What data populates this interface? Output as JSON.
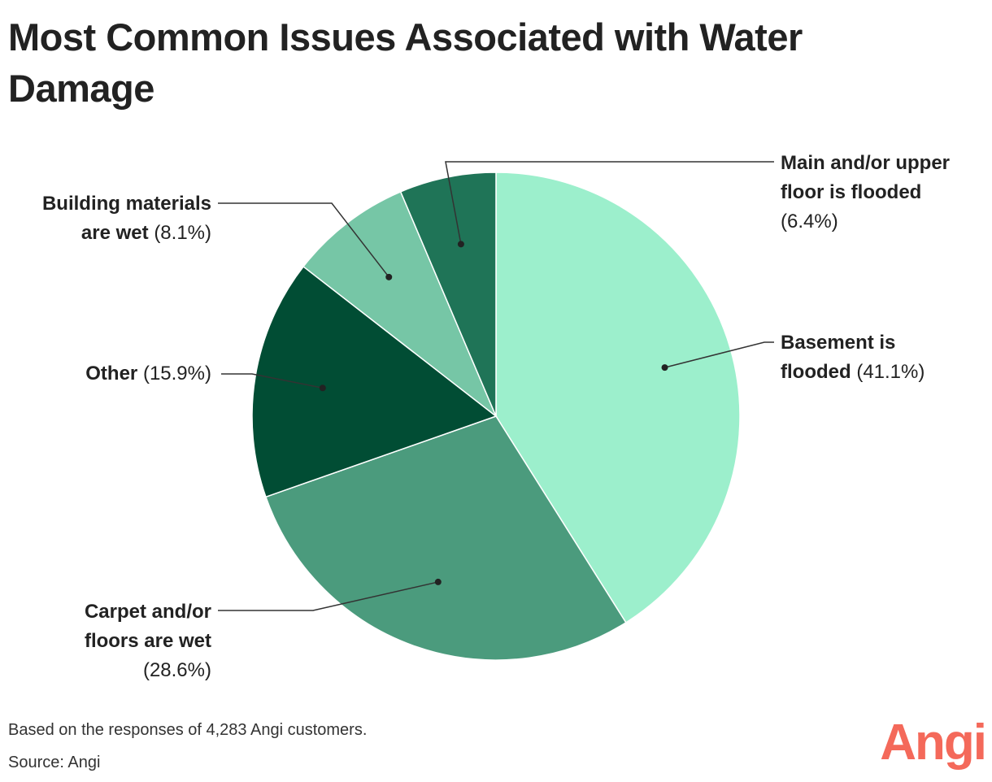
{
  "chart_data": {
    "type": "pie",
    "title": "Most Common Issues Associated with Water Damage",
    "slices": [
      {
        "label": "Basement is flooded",
        "label_line1": "Basement is",
        "label_line2": "flooded",
        "pct_text": "(41.1%)",
        "value": 41.1,
        "color": "#9cefcc"
      },
      {
        "label": "Carpet and/or floors are wet",
        "label_line1": "Carpet and/or",
        "label_line2": "floors are wet",
        "pct_text": "(28.6%)",
        "value": 28.6,
        "color": "#4b9b7d"
      },
      {
        "label": "Other",
        "label_line1": "Other",
        "pct_text": "(15.9%)",
        "value": 15.9,
        "color": "#014d34"
      },
      {
        "label": "Building materials are wet",
        "label_line1": "Building materials",
        "label_line2": "are wet",
        "pct_text": "(8.1%)",
        "value": 8.1,
        "color": "#76c6a6"
      },
      {
        "label": "Main and/or upper floor is flooded",
        "label_line1": "Main and/or upper",
        "label_line2": "floor is flooded",
        "pct_text": "(6.4%)",
        "value": 6.4,
        "color": "#1f7457"
      }
    ]
  },
  "footer": {
    "note": "Based on the responses of 4,283 Angi customers.",
    "source": "Source: Angi"
  },
  "brand": {
    "logo_text": "Angi",
    "color": "#f4695a"
  }
}
